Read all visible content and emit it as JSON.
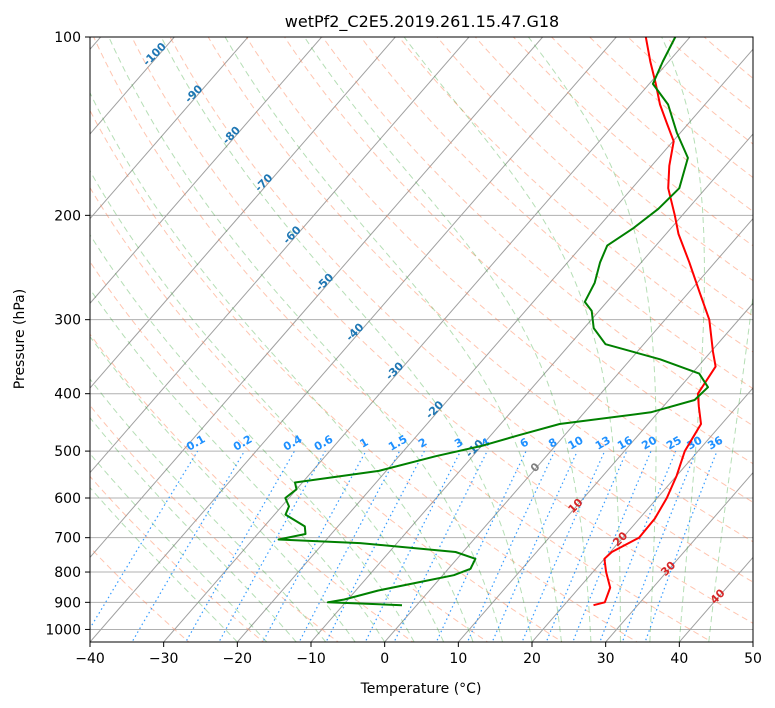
{
  "chart_data": {
    "type": "line",
    "title": "wetPf2_C2E5.2019.261.15.47.G18",
    "xlabel": "Temperature (°C)",
    "ylabel": "Pressure (hPa)",
    "xlim": [
      -40,
      50
    ],
    "ylim": [
      1050,
      100
    ],
    "y_scale": "log",
    "grid": true,
    "x_ticks": [
      -40,
      -30,
      -20,
      -10,
      0,
      10,
      20,
      30,
      40,
      50
    ],
    "x_tick_labels": [
      "−40",
      "−30",
      "−20",
      "−10",
      "0",
      "10",
      "20",
      "30",
      "40",
      "50"
    ],
    "y_ticks": [
      1000,
      900,
      800,
      700,
      600,
      500,
      400,
      300,
      200,
      100
    ],
    "y_tick_labels": [
      "1000",
      "900",
      "800",
      "700",
      "600",
      "500",
      "400",
      "300",
      "200",
      "100"
    ],
    "temperature_profile": {
      "color": "#ff0000",
      "points": [
        [
          910,
          24
        ],
        [
          900,
          25.2
        ],
        [
          850,
          24.2
        ],
        [
          800,
          21.8
        ],
        [
          760,
          20
        ],
        [
          740,
          20.2
        ],
        [
          700,
          22.2
        ],
        [
          650,
          22.1
        ],
        [
          600,
          21.3
        ],
        [
          550,
          20
        ],
        [
          500,
          18.2
        ],
        [
          470,
          17.6
        ],
        [
          450,
          17.2
        ],
        [
          420,
          14.8
        ],
        [
          400,
          13.2
        ],
        [
          360,
          12.4
        ],
        [
          340,
          10.3
        ],
        [
          300,
          6
        ],
        [
          270,
          1.5
        ],
        [
          240,
          -3.5
        ],
        [
          215,
          -8.3
        ],
        [
          200,
          -11
        ],
        [
          180,
          -15.1
        ],
        [
          165,
          -17.6
        ],
        [
          150,
          -19.9
        ],
        [
          140,
          -22.9
        ],
        [
          130,
          -26.1
        ],
        [
          120,
          -29.1
        ],
        [
          110,
          -32.5
        ],
        [
          100,
          -36
        ]
      ]
    },
    "dewpoint_profile": {
      "color": "#008000",
      "points": [
        [
          910,
          -2
        ],
        [
          905,
          -7
        ],
        [
          900,
          -12.4
        ],
        [
          890,
          -10.5
        ],
        [
          860,
          -7
        ],
        [
          830,
          -2
        ],
        [
          810,
          1.5
        ],
        [
          790,
          3
        ],
        [
          760,
          2.5
        ],
        [
          740,
          -1
        ],
        [
          715,
          -15
        ],
        [
          705,
          -26.5
        ],
        [
          690,
          -23.5
        ],
        [
          670,
          -24.5
        ],
        [
          640,
          -28.5
        ],
        [
          620,
          -29
        ],
        [
          600,
          -30.5
        ],
        [
          580,
          -30
        ],
        [
          565,
          -31
        ],
        [
          540,
          -21
        ],
        [
          510,
          -15
        ],
        [
          490,
          -10
        ],
        [
          470,
          -6.2
        ],
        [
          450,
          -2
        ],
        [
          430,
          9
        ],
        [
          410,
          13.5
        ],
        [
          390,
          13.8
        ],
        [
          370,
          11
        ],
        [
          350,
          4
        ],
        [
          330,
          -5.2
        ],
        [
          310,
          -8.7
        ],
        [
          290,
          -11
        ],
        [
          280,
          -13
        ],
        [
          260,
          -13.9
        ],
        [
          240,
          -15.6
        ],
        [
          225,
          -16.6
        ],
        [
          210,
          -15.1
        ],
        [
          195,
          -14
        ],
        [
          180,
          -13.6
        ],
        [
          160,
          -16
        ],
        [
          145,
          -20.5
        ],
        [
          130,
          -25
        ],
        [
          120,
          -29.5
        ],
        [
          110,
          -30.8
        ],
        [
          100,
          -32
        ]
      ]
    },
    "isotherm_labels": [
      "-100",
      "-90",
      "-80",
      "-70",
      "-60",
      "-50",
      "-40",
      "-30",
      "-20",
      "-10"
    ],
    "isotherm_values": [
      -100,
      -90,
      -80,
      -70,
      -60,
      -50,
      -40,
      -30,
      -20,
      -10
    ],
    "mixing_ratio_labels": [
      "0.1",
      "0.2",
      "0.4",
      "0.6",
      "1",
      "1.5",
      "2",
      "3",
      "4",
      "6",
      "8",
      "10",
      "13",
      "16",
      "20",
      "25",
      "30",
      "36"
    ],
    "mixing_ratio_values": [
      0.1,
      0.2,
      0.4,
      0.6,
      1,
      1.5,
      2,
      3,
      4,
      6,
      8,
      10,
      13,
      16,
      20,
      25,
      30,
      36
    ],
    "warm_isotherm_labels": [
      "0",
      "10",
      "20",
      "30",
      "40"
    ],
    "warm_isotherm_values": [
      0,
      10,
      20,
      30,
      40
    ],
    "colors": {
      "temperature": "#ff0000",
      "dewpoint": "#008000",
      "dry_adiabat": "#ff7f50",
      "moist_adiabat": "#2ca02c",
      "mixing_ratio": "#1e90ff",
      "isotherm": "#808080",
      "isotherm_label_cold": "#1f77b4",
      "isotherm_label_warm": "#d62728"
    }
  }
}
